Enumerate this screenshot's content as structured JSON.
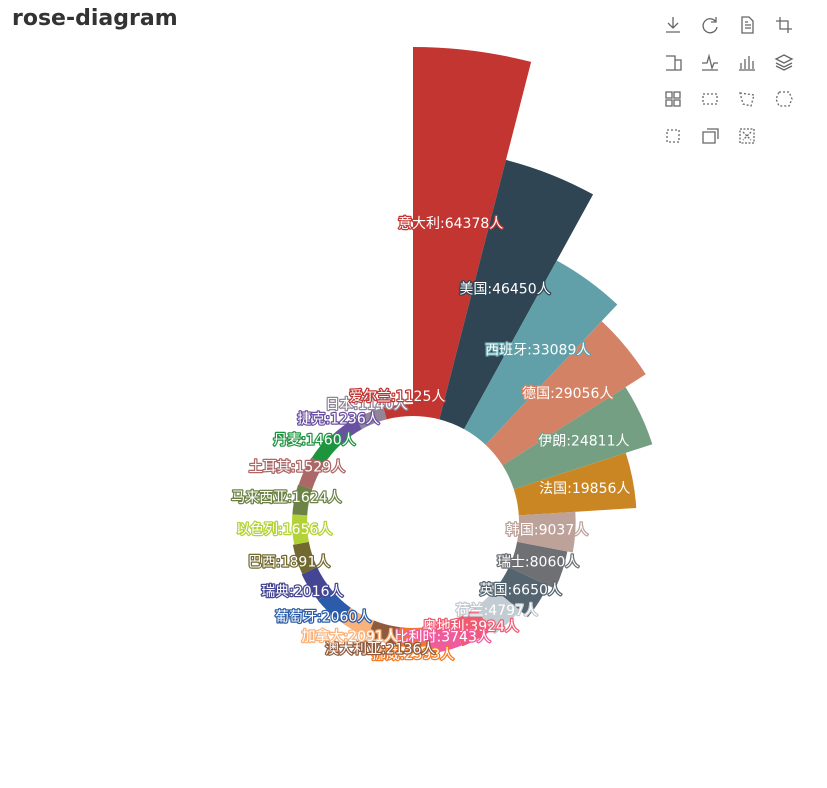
{
  "chart_data": {
    "type": "pie",
    "rose_type": "radius",
    "title": "rose-diagram",
    "inner_radius_ratio": 0.3,
    "slices": [
      {
        "name": "意大利",
        "value": 64378,
        "label": "意大利:64378人",
        "color": "#c23531"
      },
      {
        "name": "美国",
        "value": 46450,
        "label": "美国:46450人",
        "color": "#2f4554"
      },
      {
        "name": "西班牙",
        "value": 33089,
        "label": "西班牙:33089人",
        "color": "#61a0a8"
      },
      {
        "name": "德国",
        "value": 29056,
        "label": "德国:29056人",
        "color": "#d48265"
      },
      {
        "name": "伊朗",
        "value": 24811,
        "label": "伊朗:24811人",
        "color": "#749f83"
      },
      {
        "name": "法国",
        "value": 19856,
        "label": "法国:19856人",
        "color": "#ca8622"
      },
      {
        "name": "韩国",
        "value": 9037,
        "label": "韩国:9037人",
        "color": "#bda29a"
      },
      {
        "name": "瑞士",
        "value": 8060,
        "label": "瑞士:8060人",
        "color": "#6e7074"
      },
      {
        "name": "英国",
        "value": 6650,
        "label": "英国:6650人",
        "color": "#546570"
      },
      {
        "name": "荷兰",
        "value": 4797,
        "label": "荷兰:4797人",
        "color": "#c4ccd3"
      },
      {
        "name": "奥地利",
        "value": 3924,
        "label": "奥地利:3924人",
        "color": "#f05b72"
      },
      {
        "name": "比利时",
        "value": 3743,
        "label": "比利时:3743人",
        "color": "#ef5b9c"
      },
      {
        "name": "挪威",
        "value": 2393,
        "label": "挪威:2393人",
        "color": "#f47920"
      },
      {
        "name": "澳大利亚",
        "value": 2136,
        "label": "澳大利亚:2136人",
        "color": "#905a3d"
      },
      {
        "name": "加拿大",
        "value": 2091,
        "label": "加拿大:2091人",
        "color": "#fab27b"
      },
      {
        "name": "葡萄牙",
        "value": 2060,
        "label": "葡萄牙:2060人",
        "color": "#2a5caa"
      },
      {
        "name": "瑞典",
        "value": 2016,
        "label": "瑞典:2016人",
        "color": "#444693"
      },
      {
        "name": "巴西",
        "value": 1891,
        "label": "巴西:1891人",
        "color": "#726930"
      },
      {
        "name": "以色列",
        "value": 1656,
        "label": "以色列:1656人",
        "color": "#b2d235"
      },
      {
        "name": "马来西亚",
        "value": 1624,
        "label": "马来西亚:1624人",
        "color": "#6d8346"
      },
      {
        "name": "土耳其",
        "value": 1529,
        "label": "土耳其:1529人",
        "color": "#ac6767"
      },
      {
        "name": "丹麦",
        "value": 1460,
        "label": "丹麦:1460人",
        "color": "#1d953f"
      },
      {
        "name": "捷克",
        "value": 1236,
        "label": "捷克:1236人",
        "color": "#6950a1"
      },
      {
        "name": "日本",
        "value": 1140,
        "label": "日本:1140人",
        "color": "#918597"
      },
      {
        "name": "爱尔兰",
        "value": 1125,
        "label": "爱尔兰:1125人",
        "color": "#c23531"
      }
    ]
  },
  "toolbox": {
    "icons": [
      "download-icon",
      "refresh-icon",
      "data-view-icon",
      "zoom-icon",
      "zoom-reset-icon",
      "line-chart-icon",
      "bar-chart-icon",
      "stack-icon",
      "tiled-icon",
      "rect-select-icon",
      "polygon-select-icon",
      "keep-select-icon",
      "clear-select-icon",
      "brush-icon",
      "clear-icon"
    ],
    "icon_color": "#666666"
  }
}
